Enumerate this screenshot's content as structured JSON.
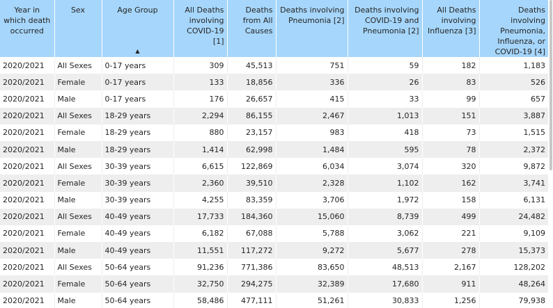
{
  "columns": [
    {
      "key": "year",
      "label": "Year in which death occurred",
      "align": "c"
    },
    {
      "key": "sex",
      "label": "Sex",
      "align": "c"
    },
    {
      "key": "age",
      "label": "Age Group",
      "align": "c",
      "sorted": "asc",
      "sort_glyph": "▲"
    },
    {
      "key": "covid",
      "label": "All Deaths involving COVID-19 [1]",
      "align": "r"
    },
    {
      "key": "all",
      "label": "Deaths from All Causes",
      "align": "r"
    },
    {
      "key": "pneu",
      "label": "Deaths involving Pneumonia [2]",
      "align": "r"
    },
    {
      "key": "covpneu",
      "label": "Deaths involving COVID-19 and Pneumonia [2]",
      "align": "r"
    },
    {
      "key": "flu",
      "label": "All Deaths involving Influenza [3]",
      "align": "r"
    },
    {
      "key": "pic",
      "label": "Deaths involving Pneumonia, Influenza, or COVID-19 [4]",
      "align": "r"
    }
  ],
  "rows": [
    [
      "2020/2021",
      "All Sexes",
      "0-17 years",
      "309",
      "45,513",
      "751",
      "59",
      "182",
      "1,183"
    ],
    [
      "2020/2021",
      "Female",
      "0-17 years",
      "133",
      "18,856",
      "336",
      "26",
      "83",
      "526"
    ],
    [
      "2020/2021",
      "Male",
      "0-17 years",
      "176",
      "26,657",
      "415",
      "33",
      "99",
      "657"
    ],
    [
      "2020/2021",
      "All Sexes",
      "18-29 years",
      "2,294",
      "86,155",
      "2,467",
      "1,013",
      "151",
      "3,887"
    ],
    [
      "2020/2021",
      "Female",
      "18-29 years",
      "880",
      "23,157",
      "983",
      "418",
      "73",
      "1,515"
    ],
    [
      "2020/2021",
      "Male",
      "18-29 years",
      "1,414",
      "62,998",
      "1,484",
      "595",
      "78",
      "2,372"
    ],
    [
      "2020/2021",
      "All Sexes",
      "30-39 years",
      "6,615",
      "122,869",
      "6,034",
      "3,074",
      "320",
      "9,872"
    ],
    [
      "2020/2021",
      "Female",
      "30-39 years",
      "2,360",
      "39,510",
      "2,328",
      "1,102",
      "162",
      "3,741"
    ],
    [
      "2020/2021",
      "Male",
      "30-39 years",
      "4,255",
      "83,359",
      "3,706",
      "1,972",
      "158",
      "6,131"
    ],
    [
      "2020/2021",
      "All Sexes",
      "40-49 years",
      "17,733",
      "184,360",
      "15,060",
      "8,739",
      "499",
      "24,482"
    ],
    [
      "2020/2021",
      "Female",
      "40-49 years",
      "6,182",
      "67,088",
      "5,788",
      "3,062",
      "221",
      "9,109"
    ],
    [
      "2020/2021",
      "Male",
      "40-49 years",
      "11,551",
      "117,272",
      "9,272",
      "5,677",
      "278",
      "15,373"
    ],
    [
      "2020/2021",
      "All Sexes",
      "50-64 years",
      "91,236",
      "771,386",
      "83,650",
      "48,513",
      "2,167",
      "128,202"
    ],
    [
      "2020/2021",
      "Female",
      "50-64 years",
      "32,750",
      "294,275",
      "32,389",
      "17,680",
      "911",
      "48,264"
    ],
    [
      "2020/2021",
      "Male",
      "50-64 years",
      "58,486",
      "477,111",
      "51,261",
      "30,833",
      "1,256",
      "79,938"
    ]
  ],
  "colors": {
    "header_bg": "#a6d6fb",
    "row_alt": "#eeeeee",
    "text": "#252423"
  }
}
